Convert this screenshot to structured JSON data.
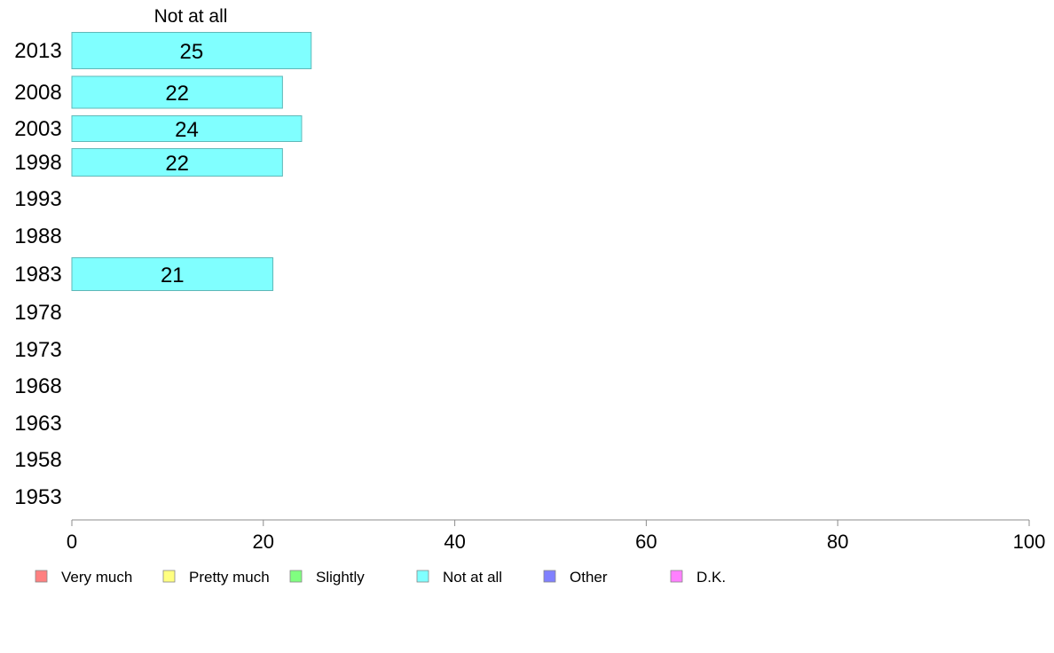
{
  "chart_data": {
    "type": "bar",
    "orientation": "horizontal",
    "title": "Not at all",
    "categories": [
      "2013",
      "2008",
      "2003",
      "1998",
      "1993",
      "1988",
      "1983",
      "1978",
      "1973",
      "1968",
      "1963",
      "1958",
      "1953"
    ],
    "series": [
      {
        "name": "Not at all",
        "color": "#80ffff",
        "values": [
          25,
          22,
          24,
          22,
          null,
          null,
          21,
          null,
          null,
          null,
          null,
          null,
          null
        ]
      }
    ],
    "xlim": [
      0,
      100
    ],
    "xticks": [
      0,
      20,
      40,
      60,
      80,
      100
    ],
    "grid": false,
    "legend_position": "bottom",
    "legend": [
      {
        "label": "Very much",
        "color": "#ff8080"
      },
      {
        "label": "Pretty much",
        "color": "#ffff80"
      },
      {
        "label": "Slightly",
        "color": "#80ff80"
      },
      {
        "label": "Not at all",
        "color": "#80ffff"
      },
      {
        "label": "Other",
        "color": "#8080ff"
      },
      {
        "label": "D.K.",
        "color": "#ff80ff"
      }
    ]
  }
}
